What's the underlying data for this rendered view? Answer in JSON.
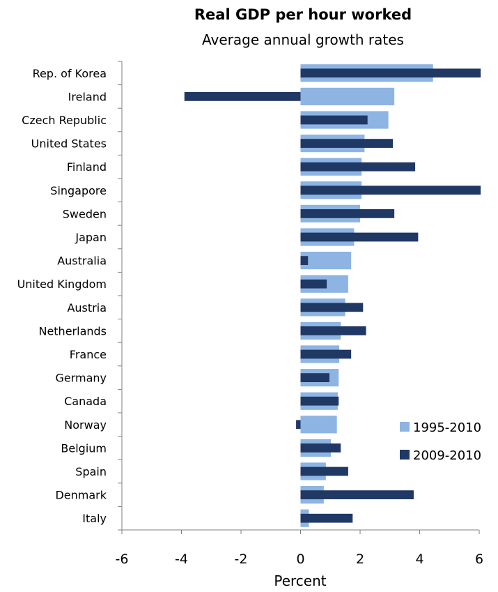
{
  "chart_data": {
    "type": "bar",
    "orientation": "horizontal",
    "title": "Real GDP per hour worked",
    "subtitle": "Average annual growth rates",
    "xlabel": "Percent",
    "ylabel": "",
    "xlim": [
      -6,
      6
    ],
    "xticks": [
      -6,
      -4,
      -2,
      0,
      2,
      4,
      6
    ],
    "grid": false,
    "legend": "bottom-right",
    "categories": [
      "Rep. of Korea",
      "Ireland",
      "Czech Republic",
      "United States",
      "Finland",
      "Singapore",
      "Sweden",
      "Japan",
      "Australia",
      "United Kingdom",
      "Austria",
      "Netherlands",
      "France",
      "Germany",
      "Canada",
      "Norway",
      "Belgium",
      "Spain",
      "Denmark",
      "Italy"
    ],
    "series": [
      {
        "name": "1995-2010",
        "color": "#8DB4E2",
        "values": [
          4.45,
          3.15,
          2.95,
          2.15,
          2.05,
          2.05,
          2.0,
          1.8,
          1.7,
          1.6,
          1.5,
          1.35,
          1.3,
          1.28,
          1.25,
          1.22,
          1.02,
          0.85,
          0.78,
          0.28
        ]
      },
      {
        "name": "2009-2010",
        "color": "#1F3864",
        "values": [
          6.05,
          -3.9,
          2.25,
          3.1,
          3.85,
          6.05,
          3.15,
          3.95,
          0.25,
          0.88,
          2.1,
          2.2,
          1.7,
          0.97,
          1.28,
          -0.15,
          1.35,
          1.6,
          3.8,
          1.75
        ]
      }
    ]
  }
}
